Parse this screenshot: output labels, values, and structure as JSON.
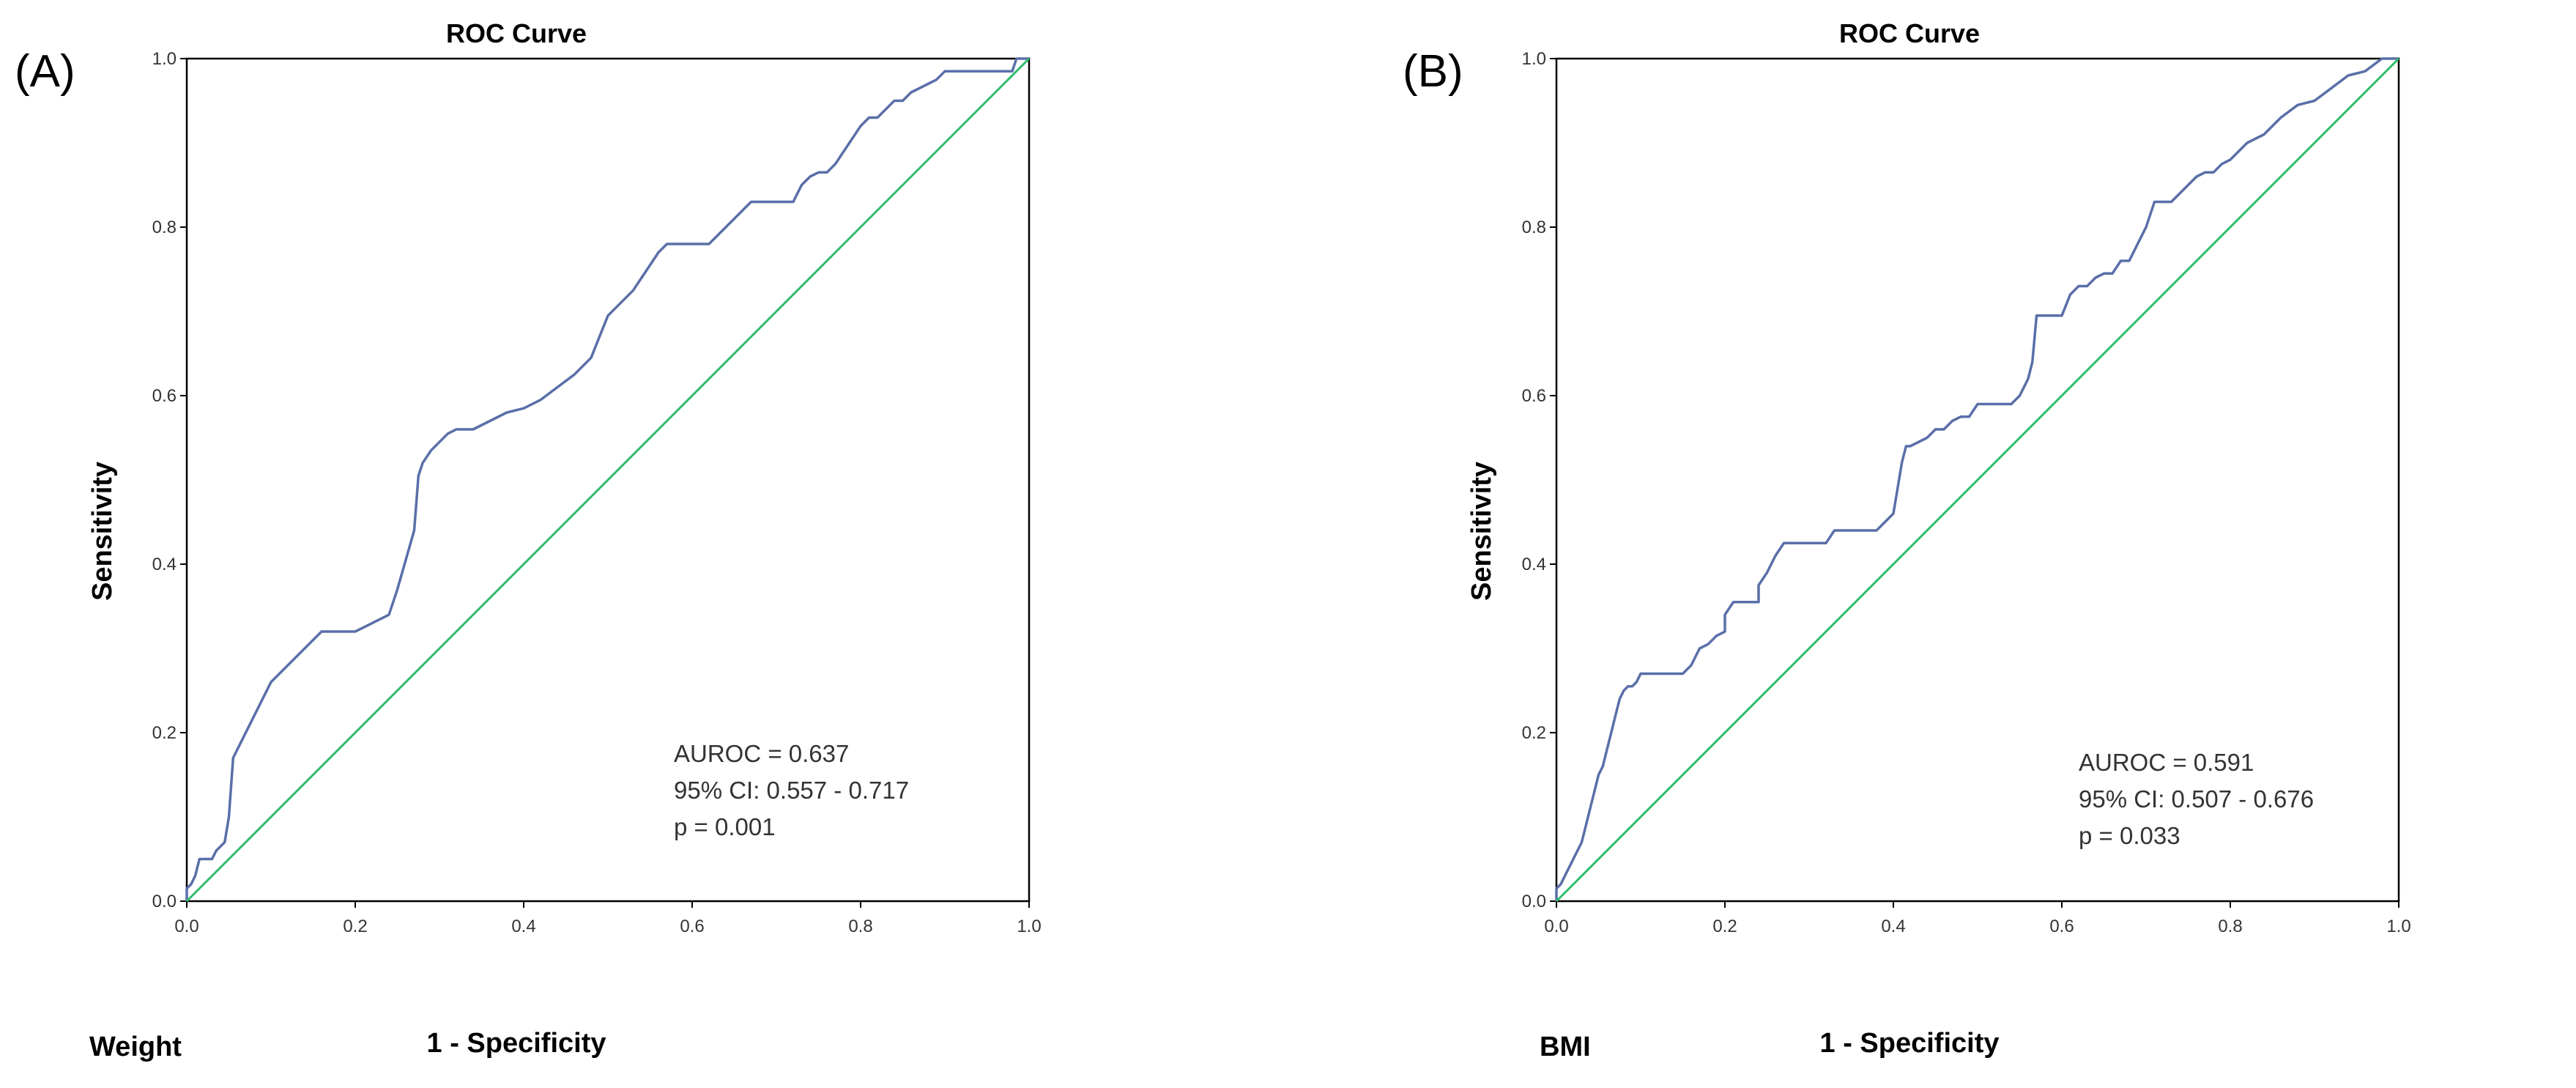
{
  "chart_data": [
    {
      "type": "line",
      "panel_label": "(A)",
      "title": "ROC Curve",
      "xlabel": "1 - Specificity",
      "ylabel": "Sensitivity",
      "variable_label": "Weight",
      "xlim": [
        0,
        1
      ],
      "ylim": [
        0,
        1
      ],
      "xticks": [
        "0.0",
        "0.2",
        "0.4",
        "0.6",
        "0.8",
        "1.0"
      ],
      "yticks": [
        "0.0",
        "0.2",
        "0.4",
        "0.6",
        "0.8",
        "1.0"
      ],
      "annotations": [
        "AUROC = 0.637",
        "95% CI: 0.557 - 0.717",
        "p = 0.001"
      ],
      "colors": {
        "roc": "#5a6fa8",
        "reference": "#2ebd6b"
      },
      "series": [
        {
          "name": "ROC",
          "x": [
            0,
            0,
            0.005,
            0.01,
            0.015,
            0.02,
            0.03,
            0.035,
            0.04,
            0.045,
            0.05,
            0.055,
            0.06,
            0.07,
            0.08,
            0.09,
            0.1,
            0.11,
            0.12,
            0.13,
            0.14,
            0.15,
            0.16,
            0.165,
            0.17,
            0.18,
            0.19,
            0.2,
            0.21,
            0.22,
            0.23,
            0.24,
            0.25,
            0.26,
            0.27,
            0.275,
            0.28,
            0.29,
            0.3,
            0.31,
            0.32,
            0.33,
            0.34,
            0.36,
            0.38,
            0.4,
            0.42,
            0.44,
            0.46,
            0.48,
            0.49,
            0.5,
            0.51,
            0.52,
            0.53,
            0.54,
            0.55,
            0.56,
            0.57,
            0.58,
            0.6,
            0.62,
            0.63,
            0.64,
            0.65,
            0.66,
            0.67,
            0.68,
            0.7,
            0.72,
            0.73,
            0.74,
            0.75,
            0.76,
            0.77,
            0.78,
            0.79,
            0.8,
            0.81,
            0.82,
            0.83,
            0.84,
            0.85,
            0.86,
            0.87,
            0.88,
            0.89,
            0.9,
            0.91,
            0.92,
            0.94,
            0.96,
            0.98,
            0.985,
            0.99,
            1.0
          ],
          "y": [
            0,
            0.015,
            0.02,
            0.03,
            0.05,
            0.05,
            0.05,
            0.06,
            0.065,
            0.07,
            0.1,
            0.17,
            0.18,
            0.2,
            0.22,
            0.24,
            0.26,
            0.27,
            0.28,
            0.29,
            0.3,
            0.31,
            0.32,
            0.32,
            0.32,
            0.32,
            0.32,
            0.32,
            0.325,
            0.33,
            0.335,
            0.34,
            0.37,
            0.405,
            0.44,
            0.505,
            0.52,
            0.535,
            0.545,
            0.555,
            0.56,
            0.56,
            0.56,
            0.57,
            0.58,
            0.585,
            0.595,
            0.61,
            0.625,
            0.645,
            0.67,
            0.695,
            0.705,
            0.715,
            0.725,
            0.74,
            0.755,
            0.77,
            0.78,
            0.78,
            0.78,
            0.78,
            0.79,
            0.8,
            0.81,
            0.82,
            0.83,
            0.83,
            0.83,
            0.83,
            0.85,
            0.86,
            0.865,
            0.865,
            0.875,
            0.89,
            0.905,
            0.92,
            0.93,
            0.93,
            0.94,
            0.95,
            0.95,
            0.96,
            0.965,
            0.97,
            0.975,
            0.985,
            0.985,
            0.985,
            0.985,
            0.985,
            0.985,
            1.0,
            1.0,
            1.0
          ]
        },
        {
          "name": "Reference",
          "x": [
            0,
            1
          ],
          "y": [
            0,
            1
          ]
        }
      ]
    },
    {
      "type": "line",
      "panel_label": "(B)",
      "title": "ROC Curve",
      "xlabel": "1 - Specificity",
      "ylabel": "Sensitivity",
      "variable_label": "BMI",
      "xlim": [
        0,
        1
      ],
      "ylim": [
        0,
        1
      ],
      "xticks": [
        "0.0",
        "0.2",
        "0.4",
        "0.6",
        "0.8",
        "1.0"
      ],
      "yticks": [
        "0.0",
        "0.2",
        "0.4",
        "0.6",
        "0.8",
        "1.0"
      ],
      "annotations": [
        "AUROC = 0.591",
        "95% CI: 0.507 - 0.676",
        "p = 0.033"
      ],
      "colors": {
        "roc": "#5a6fa8",
        "reference": "#2ebd6b"
      },
      "series": [
        {
          "name": "ROC",
          "x": [
            0,
            0,
            0.005,
            0.01,
            0.015,
            0.02,
            0.025,
            0.03,
            0.035,
            0.04,
            0.045,
            0.05,
            0.055,
            0.06,
            0.065,
            0.07,
            0.075,
            0.08,
            0.085,
            0.09,
            0.095,
            0.1,
            0.12,
            0.15,
            0.16,
            0.17,
            0.18,
            0.19,
            0.2,
            0.2,
            0.21,
            0.23,
            0.24,
            0.24,
            0.25,
            0.26,
            0.27,
            0.29,
            0.3,
            0.32,
            0.33,
            0.36,
            0.38,
            0.39,
            0.4,
            0.405,
            0.41,
            0.415,
            0.42,
            0.44,
            0.45,
            0.46,
            0.47,
            0.48,
            0.49,
            0.5,
            0.52,
            0.54,
            0.55,
            0.56,
            0.565,
            0.57,
            0.58,
            0.6,
            0.61,
            0.62,
            0.63,
            0.64,
            0.65,
            0.66,
            0.67,
            0.68,
            0.69,
            0.7,
            0.71,
            0.72,
            0.73,
            0.74,
            0.75,
            0.76,
            0.77,
            0.78,
            0.79,
            0.8,
            0.82,
            0.84,
            0.86,
            0.88,
            0.9,
            0.92,
            0.94,
            0.96,
            0.98,
            1.0
          ],
          "y": [
            0,
            0.015,
            0.02,
            0.03,
            0.04,
            0.05,
            0.06,
            0.07,
            0.09,
            0.11,
            0.13,
            0.15,
            0.16,
            0.18,
            0.2,
            0.22,
            0.24,
            0.25,
            0.255,
            0.255,
            0.26,
            0.27,
            0.27,
            0.27,
            0.28,
            0.3,
            0.305,
            0.315,
            0.32,
            0.34,
            0.355,
            0.355,
            0.355,
            0.375,
            0.39,
            0.41,
            0.425,
            0.425,
            0.425,
            0.425,
            0.44,
            0.44,
            0.44,
            0.45,
            0.46,
            0.49,
            0.52,
            0.54,
            0.54,
            0.55,
            0.56,
            0.56,
            0.57,
            0.575,
            0.575,
            0.59,
            0.59,
            0.59,
            0.6,
            0.62,
            0.64,
            0.695,
            0.695,
            0.695,
            0.72,
            0.73,
            0.73,
            0.74,
            0.745,
            0.745,
            0.76,
            0.76,
            0.78,
            0.8,
            0.83,
            0.83,
            0.83,
            0.84,
            0.85,
            0.86,
            0.865,
            0.865,
            0.875,
            0.88,
            0.9,
            0.91,
            0.93,
            0.945,
            0.95,
            0.965,
            0.98,
            0.985,
            1.0,
            1.0
          ]
        },
        {
          "name": "Reference",
          "x": [
            0,
            1
          ],
          "y": [
            0,
            1
          ]
        }
      ]
    }
  ]
}
